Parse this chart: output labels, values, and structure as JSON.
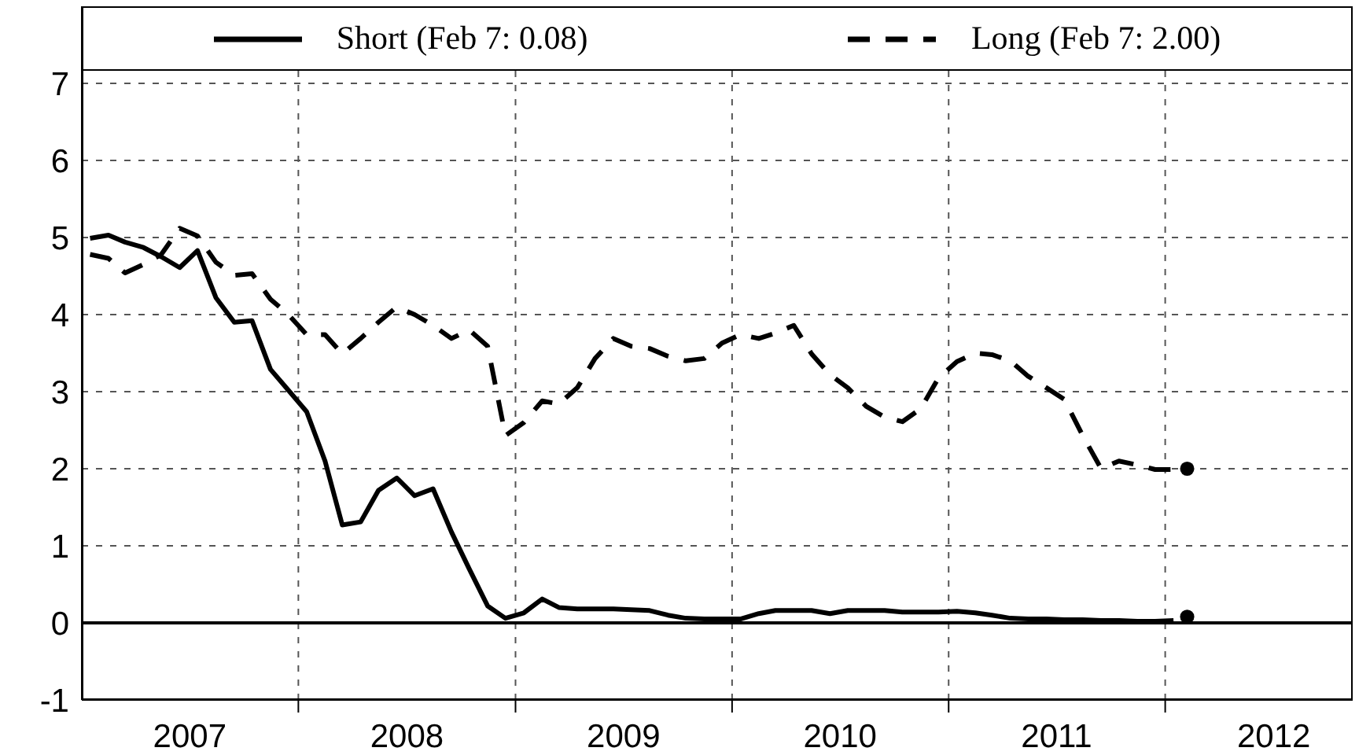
{
  "chart_data": {
    "type": "line",
    "x": [
      "2007-01-15",
      "2007-02-15",
      "2007-03-15",
      "2007-04-15",
      "2007-05-15",
      "2007-06-15",
      "2007-07-15",
      "2007-08-15",
      "2007-09-15",
      "2007-10-15",
      "2007-11-15",
      "2007-12-15",
      "2008-01-15",
      "2008-02-15",
      "2008-03-15",
      "2008-04-15",
      "2008-05-15",
      "2008-06-15",
      "2008-07-15",
      "2008-08-15",
      "2008-09-15",
      "2008-10-15",
      "2008-11-15",
      "2008-12-15",
      "2009-01-15",
      "2009-02-15",
      "2009-03-15",
      "2009-04-15",
      "2009-05-15",
      "2009-06-15",
      "2009-07-15",
      "2009-08-15",
      "2009-09-15",
      "2009-10-15",
      "2009-11-15",
      "2009-12-15",
      "2010-01-15",
      "2010-02-15",
      "2010-03-15",
      "2010-04-15",
      "2010-05-15",
      "2010-06-15",
      "2010-07-15",
      "2010-08-15",
      "2010-09-15",
      "2010-10-15",
      "2010-11-15",
      "2010-12-15",
      "2011-01-15",
      "2011-02-15",
      "2011-03-15",
      "2011-04-15",
      "2011-05-15",
      "2011-06-15",
      "2011-07-15",
      "2011-08-15",
      "2011-09-15",
      "2011-10-15",
      "2011-11-15",
      "2011-12-15",
      "2012-01-15"
    ],
    "series": [
      {
        "name": "Short (Feb 7: 0.08)",
        "color": "#000000",
        "line_style": "solid",
        "values": [
          4.99,
          5.03,
          4.94,
          4.87,
          4.75,
          4.61,
          4.83,
          4.22,
          3.9,
          3.92,
          3.29,
          3.02,
          2.74,
          2.1,
          1.27,
          1.31,
          1.72,
          1.88,
          1.65,
          1.74,
          1.18,
          0.7,
          0.22,
          0.06,
          0.13,
          0.31,
          0.2,
          0.18,
          0.18,
          0.18,
          0.17,
          0.16,
          0.1,
          0.06,
          0.05,
          0.05,
          0.05,
          0.12,
          0.16,
          0.16,
          0.16,
          0.12,
          0.16,
          0.16,
          0.16,
          0.14,
          0.14,
          0.14,
          0.15,
          0.13,
          0.1,
          0.06,
          0.05,
          0.05,
          0.04,
          0.04,
          0.03,
          0.03,
          0.02,
          0.02,
          0.03
        ]
      },
      {
        "name": "Long (Feb 7: 2.00)",
        "color": "#000000",
        "line_style": "dashed",
        "values": [
          4.78,
          4.73,
          4.54,
          4.65,
          4.78,
          5.12,
          5.02,
          4.68,
          4.51,
          4.53,
          4.2,
          4.0,
          3.74,
          3.74,
          3.49,
          3.69,
          3.9,
          4.1,
          4.0,
          3.86,
          3.69,
          3.8,
          3.59,
          2.43,
          2.6,
          2.88,
          2.84,
          3.05,
          3.43,
          3.69,
          3.59,
          3.56,
          3.46,
          3.4,
          3.43,
          3.63,
          3.74,
          3.69,
          3.76,
          3.86,
          3.49,
          3.22,
          3.05,
          2.81,
          2.67,
          2.61,
          2.78,
          3.18,
          3.39,
          3.5,
          3.48,
          3.4,
          3.2,
          3.05,
          2.9,
          2.43,
          2.0,
          2.1,
          2.05,
          1.99,
          1.99
        ]
      },
      {
        "type": "scatter",
        "color": "#000000",
        "marker": "circle",
        "x": [
          "2012-02-07",
          "2012-02-07"
        ],
        "values": [
          0.08,
          2.0
        ]
      }
    ],
    "xlim": [
      "2007-01-01",
      "2012-11-12"
    ],
    "xticks": [
      {
        "value": "2007-07-02",
        "label": "2007"
      },
      {
        "value": "2008-01-01",
        "label": null
      },
      {
        "value": "2008-07-02",
        "label": "2008"
      },
      {
        "value": "2009-01-01",
        "label": null
      },
      {
        "value": "2009-07-02",
        "label": "2009"
      },
      {
        "value": "2010-01-01",
        "label": null
      },
      {
        "value": "2010-07-02",
        "label": "2010"
      },
      {
        "value": "2011-01-01",
        "label": null
      },
      {
        "value": "2011-07-02",
        "label": "2011"
      },
      {
        "value": "2012-01-01",
        "label": null
      },
      {
        "value": "2012-07-02",
        "label": "2012"
      }
    ],
    "ylim": [
      -1,
      8
    ],
    "yticks": [
      -1,
      0,
      1,
      2,
      3,
      4,
      5,
      6,
      7
    ],
    "ref_lines": [
      {
        "axis": "y",
        "value": 0,
        "color": "#000000",
        "line_style": "solid"
      }
    ],
    "grid": true,
    "legend": "top",
    "marker": "none"
  }
}
